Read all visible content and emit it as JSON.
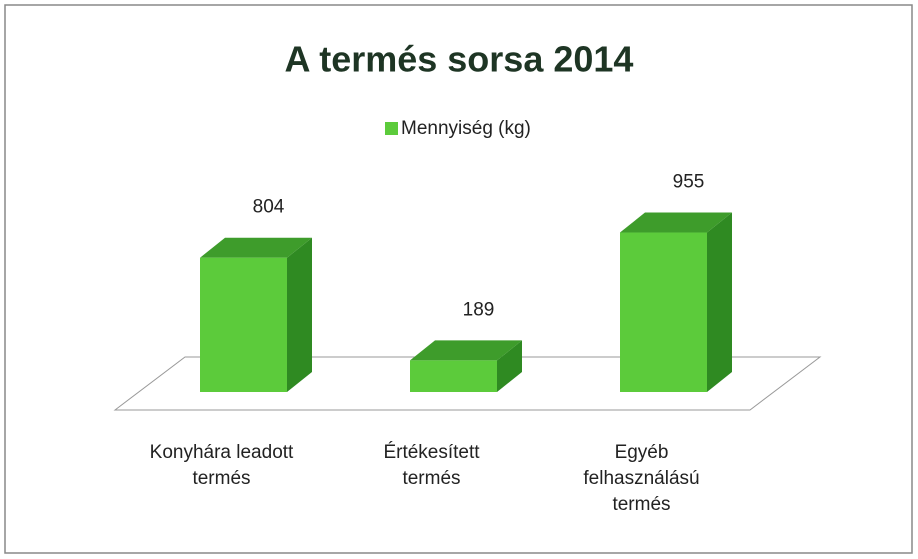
{
  "chart_data": {
    "type": "bar3d",
    "title": "A termés sorsa 2014",
    "categories": [
      "Konyhára leadott termés",
      "Értékesített termés",
      "Egyéb felhasználású termés"
    ],
    "series": [
      {
        "name": "Mennyiség (kg)",
        "color": "#5ccb3b",
        "values": [
          804,
          189,
          955
        ]
      }
    ],
    "legend": "top"
  }
}
